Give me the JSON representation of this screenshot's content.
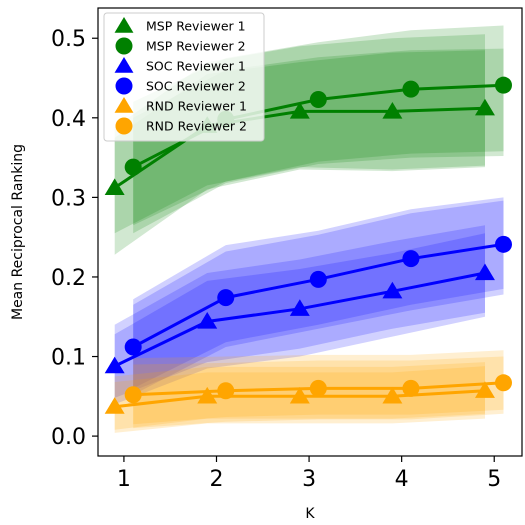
{
  "chart_data": {
    "type": "line",
    "xlabel": "K",
    "ylabel": "Mean Reciprocal Ranking",
    "xlim": [
      0.72,
      5.3
    ],
    "ylim": [
      -0.025,
      0.538
    ],
    "x_ticks": [
      1,
      2,
      3,
      4,
      5
    ],
    "y_ticks": [
      0.0,
      0.1,
      0.2,
      0.3,
      0.4,
      0.5
    ],
    "y_tick_labels": [
      "0.0",
      "0.1",
      "0.2",
      "0.3",
      "0.4",
      "0.5"
    ],
    "grid": false,
    "legend_position": "top-left",
    "series": [
      {
        "name": "MSP Reviewer 1",
        "color": "#008000",
        "marker": "triangle",
        "x": [
          0.9,
          1.9,
          2.9,
          3.9,
          4.9
        ],
        "y": [
          0.312,
          0.39,
          0.408,
          0.408,
          0.412
        ],
        "band_inner": {
          "lo": [
            0.255,
            0.315,
            0.338,
            0.335,
            0.34
          ],
          "hi": [
            0.375,
            0.455,
            0.47,
            0.482,
            0.485
          ]
        },
        "band_outer": {
          "lo": [
            0.228,
            0.31,
            0.335,
            0.333,
            0.338
          ],
          "hi": [
            0.388,
            0.47,
            0.49,
            0.5,
            0.505
          ]
        }
      },
      {
        "name": "MSP Reviewer 2",
        "color": "#008000",
        "marker": "circle",
        "x": [
          1.1,
          2.1,
          3.1,
          4.1,
          5.1
        ],
        "y": [
          0.338,
          0.398,
          0.423,
          0.436,
          0.441
        ],
        "band_inner": {
          "lo": [
            0.265,
            0.32,
            0.345,
            0.355,
            0.358
          ],
          "hi": [
            0.4,
            0.46,
            0.476,
            0.485,
            0.487
          ]
        },
        "band_outer": {
          "lo": [
            0.255,
            0.318,
            0.342,
            0.35,
            0.352
          ],
          "hi": [
            0.42,
            0.475,
            0.495,
            0.51,
            0.516
          ]
        }
      },
      {
        "name": "SOC Reviewer 1",
        "color": "#0000ff",
        "marker": "triangle",
        "x": [
          0.9,
          1.9,
          2.9,
          3.9,
          4.9
        ],
        "y": [
          0.088,
          0.144,
          0.16,
          0.182,
          0.205
        ],
        "band_inner": {
          "lo": [
            0.048,
            0.093,
            0.11,
            0.135,
            0.155
          ],
          "hi": [
            0.128,
            0.195,
            0.21,
            0.23,
            0.255
          ]
        },
        "band_outer": {
          "lo": [
            0.04,
            0.085,
            0.1,
            0.125,
            0.15
          ],
          "hi": [
            0.14,
            0.205,
            0.222,
            0.245,
            0.265
          ]
        }
      },
      {
        "name": "SOC Reviewer 2",
        "color": "#0000ff",
        "marker": "circle",
        "x": [
          1.1,
          2.1,
          3.1,
          4.1,
          5.1
        ],
        "y": [
          0.112,
          0.174,
          0.197,
          0.223,
          0.241
        ],
        "band_inner": {
          "lo": [
            0.06,
            0.118,
            0.14,
            0.165,
            0.185
          ],
          "hi": [
            0.165,
            0.232,
            0.253,
            0.28,
            0.296
          ]
        },
        "band_outer": {
          "lo": [
            0.052,
            0.112,
            0.135,
            0.158,
            0.178
          ],
          "hi": [
            0.172,
            0.24,
            0.258,
            0.285,
            0.3
          ]
        }
      },
      {
        "name": "RND Reviewer 1",
        "color": "#ffa500",
        "marker": "triangle",
        "x": [
          0.9,
          1.9,
          2.9,
          3.9,
          4.9
        ],
        "y": [
          0.037,
          0.05,
          0.05,
          0.05,
          0.057
        ],
        "band_inner": {
          "lo": [
            0.008,
            0.022,
            0.022,
            0.022,
            0.028
          ],
          "hi": [
            0.068,
            0.08,
            0.08,
            0.08,
            0.088
          ]
        },
        "band_outer": {
          "lo": [
            0.004,
            0.016,
            0.016,
            0.016,
            0.022
          ],
          "hi": [
            0.075,
            0.087,
            0.087,
            0.087,
            0.093
          ]
        }
      },
      {
        "name": "RND Reviewer 2",
        "color": "#ffa500",
        "marker": "circle",
        "x": [
          1.1,
          2.1,
          3.1,
          4.1,
          5.1
        ],
        "y": [
          0.052,
          0.057,
          0.06,
          0.06,
          0.067
        ],
        "band_inner": {
          "lo": [
            0.015,
            0.024,
            0.027,
            0.027,
            0.033
          ],
          "hi": [
            0.09,
            0.092,
            0.095,
            0.095,
            0.1
          ]
        },
        "band_outer": {
          "lo": [
            0.01,
            0.018,
            0.021,
            0.021,
            0.028
          ],
          "hi": [
            0.098,
            0.1,
            0.102,
            0.102,
            0.108
          ]
        }
      }
    ]
  }
}
